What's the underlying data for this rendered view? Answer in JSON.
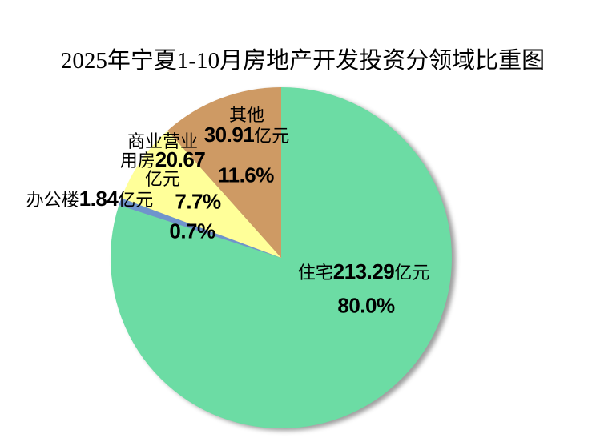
{
  "title": "2025年宁夏1-10月房地产开发投资分领域比重图",
  "chart_data": {
    "type": "pie",
    "title": "2025年宁夏1-10月房地产开发投资分领域比重图",
    "unit": "亿元",
    "start_angle": "12-oclock",
    "direction": "clockwise",
    "legend": "none",
    "slices": [
      {
        "key": "residential",
        "name": "住宅",
        "value": 213.29,
        "percent": 80.0,
        "percent_label": "80.0%",
        "value_label": "住宅213.29亿元",
        "color": "#6CDCA4"
      },
      {
        "key": "office",
        "name": "办公楼",
        "value": 1.84,
        "percent": 0.7,
        "percent_label": "0.7%",
        "value_label": "办公楼1.84亿元",
        "color": "#6F94CC"
      },
      {
        "key": "commercial",
        "name": "商业营业用房",
        "value": 20.67,
        "percent": 7.7,
        "percent_label": "7.7%",
        "value_label": "商业营业用房20.67亿元",
        "color": "#FFFF99"
      },
      {
        "key": "other",
        "name": "其他",
        "value": 30.91,
        "percent": 11.6,
        "percent_label": "11.6%",
        "value_label": "其他30.91亿元",
        "color": "#CE9A64"
      }
    ]
  },
  "labels": {
    "residential": {
      "name": "住宅",
      "value": "213.29",
      "unit": "亿元",
      "percent": "80.0%"
    },
    "office": {
      "name": "办公楼",
      "value": "1.84",
      "unit": "亿元",
      "percent": "0.7%"
    },
    "commercial": {
      "line1": "商业营业",
      "line2_text": "用房",
      "line2_value": "20.67",
      "line3": "亿元",
      "percent": "7.7%"
    },
    "other": {
      "line1": "其他",
      "value": "30.91",
      "unit": "亿元",
      "percent": "11.6%"
    }
  }
}
